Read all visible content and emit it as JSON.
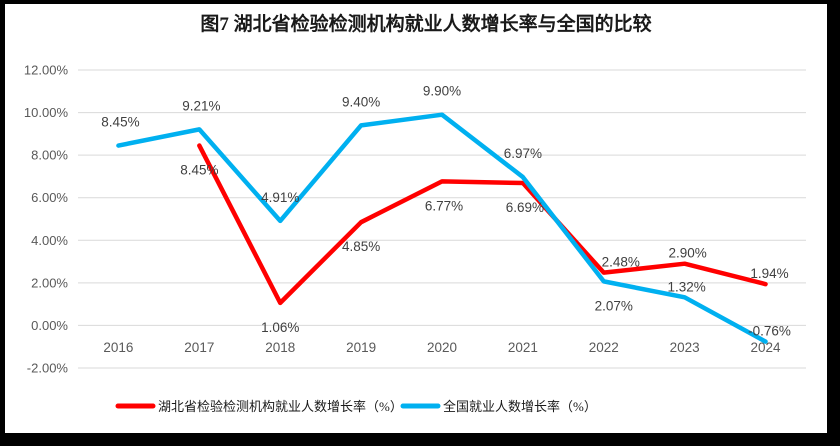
{
  "chart_data": {
    "type": "line",
    "title": "图7 湖北省检验检测机构就业人数增长率与全国的比较",
    "categories": [
      "2016",
      "2017",
      "2018",
      "2019",
      "2020",
      "2021",
      "2022",
      "2023",
      "2024"
    ],
    "series": [
      {
        "name": "湖北省检验检测机构就业人数增长率（%）",
        "color": "#FF0000",
        "values": [
          null,
          8.45,
          1.06,
          4.85,
          6.77,
          6.69,
          2.48,
          2.9,
          1.94
        ],
        "labels": [
          "",
          "8.45%",
          "1.06%",
          "4.85%",
          "6.77%",
          "6.69%",
          "2.48%",
          "2.90%",
          "1.94%"
        ],
        "label_pos": [
          null,
          "below",
          "below",
          "below",
          "below",
          "below",
          "near-above",
          "near-above",
          "near-above"
        ],
        "label_dx": [
          0,
          0,
          0,
          0,
          2,
          2,
          17,
          3,
          4
        ]
      },
      {
        "name": "全国就业人数增长率（%）",
        "color": "#00B0F0",
        "values": [
          8.45,
          9.21,
          4.91,
          9.4,
          9.9,
          6.97,
          2.07,
          1.32,
          -0.76
        ],
        "labels": [
          "8.45%",
          "9.21%",
          "4.91%",
          "9.40%",
          "9.90%",
          "6.97%",
          "2.07%",
          "1.32%",
          "-0.76%"
        ],
        "label_pos": [
          "above",
          "above",
          "above",
          "above",
          "above",
          "above",
          "below",
          "near-above",
          "near-above"
        ],
        "label_dx": [
          2,
          2,
          0,
          0,
          0,
          0,
          10,
          2,
          4
        ]
      }
    ],
    "y_axis": {
      "min": -2,
      "max": 12,
      "step": 2,
      "tick_labels": [
        "12.00%",
        "10.00%",
        "8.00%",
        "6.00%",
        "4.00%",
        "2.00%",
        "0.00%",
        "-2.00%"
      ]
    },
    "xlabel": "",
    "ylabel": "",
    "grid": true,
    "legend_position": "bottom",
    "styles": {
      "gridline_color": "#D9D9D9",
      "line_width": 4.5,
      "background": "#FFFFFF",
      "frame_border_color": "#000000"
    }
  }
}
